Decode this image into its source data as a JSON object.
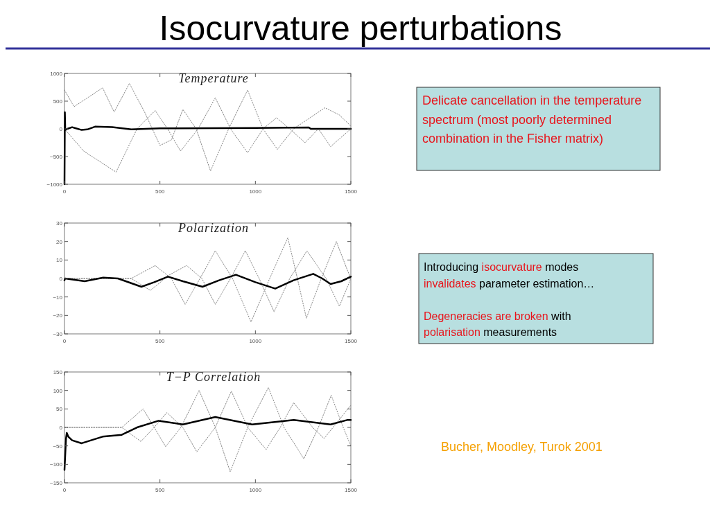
{
  "chart_data": [
    {
      "type": "other",
      "title": "Isocurvature perturbations",
      "annotations": [
        "Delicate cancellation in the temperature spectrum (most poorly determined combination in the Fisher matrix)",
        "Introducing ",
        "isocurvature",
        " modes",
        "invalidates",
        " parameter estimation…",
        "Degeneracies are broken",
        " with",
        "polarisation",
        " measurements",
        "Bucher, Moodley, Turok 2001"
      ],
      "colors": [
        "#e8141b",
        "#000000",
        "#e8141b",
        "#000000",
        "#e8141b",
        "#000000",
        "#e8141b",
        "#000000",
        "#e8141b",
        "#000000",
        "#f5a000"
      ]
    },
    {
      "type": "line",
      "title": "Temperature",
      "xlim": [
        0,
        1500
      ],
      "xticks": [
        0,
        500,
        1000,
        1500
      ],
      "ylim": [
        -1000,
        1000
      ],
      "yticks": [
        -1000,
        -500,
        0,
        500,
        1000
      ],
      "series": [
        {
          "color": "#888888",
          "line_style": "dotted",
          "x": [
            0,
            100,
            270,
            380,
            475,
            540,
            608,
            700,
            790,
            870,
            959,
            1040,
            1110,
            1180,
            1260,
            1330,
            1394,
            1500
          ],
          "values": [
            0,
            -400,
            -780,
            0,
            330,
            0,
            -400,
            0,
            560,
            0,
            -430,
            0,
            200,
            0,
            -250,
            0,
            -320,
            0
          ]
        },
        {
          "color": "#888888",
          "line_style": "dotted",
          "x": [
            0,
            50,
            200,
            260,
            340,
            420,
            500,
            560,
            620,
            690,
            765,
            860,
            959,
            1040,
            1115,
            1200,
            1364,
            1440,
            1500
          ],
          "values": [
            700,
            400,
            740,
            300,
            820,
            300,
            -300,
            -200,
            350,
            0,
            -760,
            0,
            700,
            0,
            -370,
            0,
            380,
            250,
            50
          ]
        },
        {
          "color": "#000000",
          "line_style": "solid",
          "x": [
            0,
            2,
            4,
            15,
            40,
            60,
            90,
            120,
            160,
            250,
            350,
            500,
            1000,
            1280,
            1290,
            1500
          ],
          "values": [
            -1000,
            300,
            -20,
            0,
            30,
            10,
            -20,
            -10,
            40,
            30,
            -10,
            10,
            15,
            25,
            0,
            0
          ]
        }
      ]
    },
    {
      "type": "line",
      "title": "Polarization",
      "xlim": [
        0,
        1500
      ],
      "xticks": [
        0,
        500,
        1000,
        1500
      ],
      "ylim": [
        -30,
        30
      ],
      "yticks": [
        -30,
        -20,
        -10,
        0,
        10,
        20,
        30
      ],
      "series": [
        {
          "color": "#888888",
          "line_style": "dotted",
          "x": [
            0,
            350,
            475,
            560,
            632,
            710,
            790,
            880,
            977,
            1075,
            1170,
            1220,
            1267,
            1345,
            1424,
            1480,
            1500
          ],
          "values": [
            0,
            0,
            7,
            0,
            -14,
            0,
            15,
            0,
            -23.5,
            0,
            22,
            0,
            -21.5,
            0,
            20,
            5,
            0
          ]
        },
        {
          "color": "#888888",
          "line_style": "dotted",
          "x": [
            0,
            350,
            450,
            550,
            640,
            720,
            790,
            870,
            947,
            1020,
            1098,
            1180,
            1270,
            1370,
            1440,
            1500
          ],
          "values": [
            0,
            0,
            -6.5,
            2,
            7,
            0,
            -14,
            0,
            15,
            0,
            -18,
            0,
            15,
            0,
            -15,
            0
          ]
        },
        {
          "color": "#000000",
          "line_style": "solid",
          "x": [
            0,
            3,
            106,
            203,
            280,
            403,
            470,
            542,
            620,
            723,
            810,
            898,
            1000,
            1104,
            1200,
            1303,
            1350,
            1394,
            1450,
            1500
          ],
          "values": [
            -1,
            0,
            -1.5,
            0.5,
            0,
            -4.5,
            -2,
            1,
            -1.5,
            -4.5,
            -1,
            2,
            -2,
            -5.5,
            -1,
            2.5,
            0,
            -3,
            -1.5,
            1
          ]
        }
      ]
    },
    {
      "type": "line",
      "title": "T−P Correlation",
      "xlim": [
        0,
        1500
      ],
      "xticks": [
        0,
        500,
        1000,
        1500
      ],
      "ylim": [
        -150,
        150
      ],
      "yticks": [
        -150,
        -100,
        -50,
        0,
        50,
        100,
        150
      ],
      "series": [
        {
          "color": "#888888",
          "line_style": "dotted",
          "x": [
            0,
            300,
            412,
            470,
            530,
            610,
            705,
            790,
            868,
            960,
            1068,
            1150,
            1254,
            1330,
            1397,
            1460,
            1500
          ],
          "values": [
            0,
            0,
            50,
            0,
            -52,
            0,
            100,
            0,
            -120,
            0,
            108,
            0,
            -85,
            0,
            87,
            0,
            -50
          ]
        },
        {
          "color": "#888888",
          "line_style": "dotted",
          "x": [
            0,
            300,
            400,
            470,
            536,
            620,
            693,
            790,
            874,
            960,
            1056,
            1130,
            1201,
            1300,
            1360,
            1500
          ],
          "values": [
            0,
            0,
            -38,
            0,
            40,
            0,
            -66,
            0,
            98,
            0,
            -60,
            0,
            67,
            0,
            -30,
            60
          ]
        },
        {
          "color": "#000000",
          "line_style": "solid",
          "x": [
            0,
            8,
            12,
            20,
            40,
            90,
            200,
            300,
            380,
            493,
            620,
            790,
            983,
            1201,
            1394,
            1480,
            1500
          ],
          "values": [
            -115,
            -30,
            -15,
            -25,
            -35,
            -43,
            -25,
            -20,
            0,
            18,
            8,
            28,
            8,
            20,
            8,
            20,
            20
          ]
        }
      ]
    }
  ]
}
